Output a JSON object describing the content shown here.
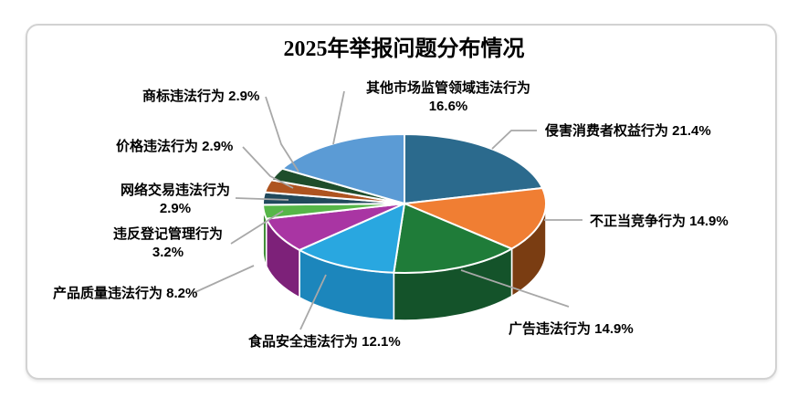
{
  "frame": {
    "background": "#ffffff",
    "border_color": "#d2d2d2"
  },
  "title": "2025年举报问题分布情况",
  "chart_data": {
    "type": "pie",
    "style": "3d",
    "title": "2025年举报问题分布情况",
    "unit": "%",
    "start_angle_deg": 0,
    "direction": "clockwise",
    "legend": "none",
    "label_format": "<name> <value>%",
    "leader_line_color": "#a8a8a8",
    "slices": [
      {
        "label": "侵害消费者权益行为",
        "value": 21.4,
        "color": "#2B6A8D",
        "side_color": "#1E4C68"
      },
      {
        "label": "不正当竞争行为",
        "value": 14.9,
        "color": "#F07E33",
        "side_color": "#7A3D12"
      },
      {
        "label": "广告违法行为",
        "value": 14.9,
        "color": "#1F7C39",
        "side_color": "#14532A"
      },
      {
        "label": "食品安全违法行为",
        "value": 12.1,
        "color": "#29A7E0",
        "side_color": "#1C86BC"
      },
      {
        "label": "产品质量违法行为",
        "value": 8.2,
        "color": "#A935A3",
        "side_color": "#7D2179"
      },
      {
        "label": "违反登记管理行为",
        "value": 3.2,
        "color": "#56B648",
        "side_color": "#3C8A33"
      },
      {
        "label": "网络交易违法行为",
        "value": 2.9,
        "color": "#21495C",
        "side_color": "#152F3C"
      },
      {
        "label": "价格违法行为",
        "value": 2.9,
        "color": "#AE5420",
        "side_color": "#7A3914"
      },
      {
        "label": "商标违法行为",
        "value": 2.9,
        "color": "#1E4D2B",
        "side_color": "#14361E"
      },
      {
        "label": "其他市场监管领域违法行为",
        "value": 16.6,
        "color": "#5B9BD5",
        "side_color": "#3E6F9D"
      }
    ]
  }
}
